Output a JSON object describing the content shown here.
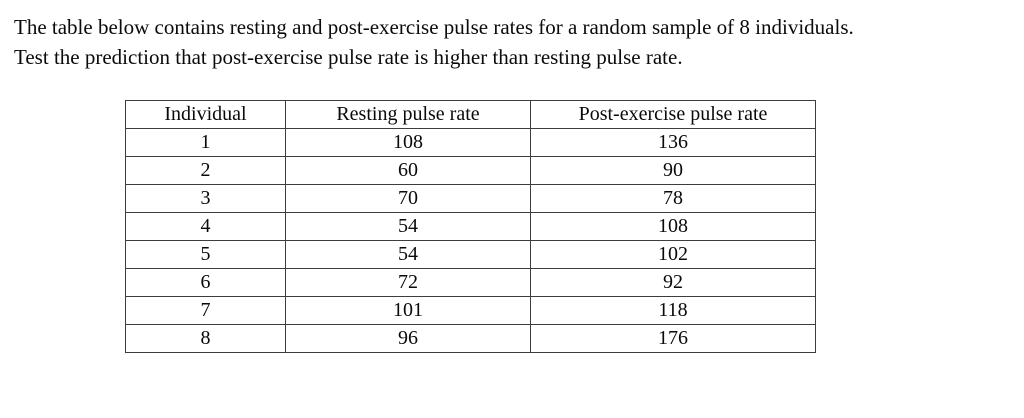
{
  "intro": {
    "line1": "The table below contains resting and post-exercise pulse rates for a random sample of 8 individuals.",
    "line2": "Test the prediction that post-exercise pulse rate is higher than resting pulse rate."
  },
  "table": {
    "headers": [
      "Individual",
      "Resting pulse rate",
      "Post-exercise pulse rate"
    ],
    "rows": [
      [
        "1",
        "108",
        "136"
      ],
      [
        "2",
        "60",
        "90"
      ],
      [
        "3",
        "70",
        "78"
      ],
      [
        "4",
        "54",
        "108"
      ],
      [
        "5",
        "54",
        "102"
      ],
      [
        "6",
        "72",
        "92"
      ],
      [
        "7",
        "101",
        "118"
      ],
      [
        "8",
        "96",
        "176"
      ]
    ]
  },
  "chart_data": {
    "type": "table",
    "title": "",
    "columns": [
      "Individual",
      "Resting pulse rate",
      "Post-exercise pulse rate"
    ],
    "individuals": [
      1,
      2,
      3,
      4,
      5,
      6,
      7,
      8
    ],
    "series": [
      {
        "name": "Resting pulse rate",
        "values": [
          108,
          60,
          70,
          54,
          54,
          72,
          101,
          96
        ]
      },
      {
        "name": "Post-exercise pulse rate",
        "values": [
          136,
          90,
          78,
          108,
          102,
          92,
          118,
          176
        ]
      }
    ]
  },
  "colors": {
    "background": "#ffffff",
    "text": "#0a0a0a",
    "table_border": "#3d3d3d"
  }
}
